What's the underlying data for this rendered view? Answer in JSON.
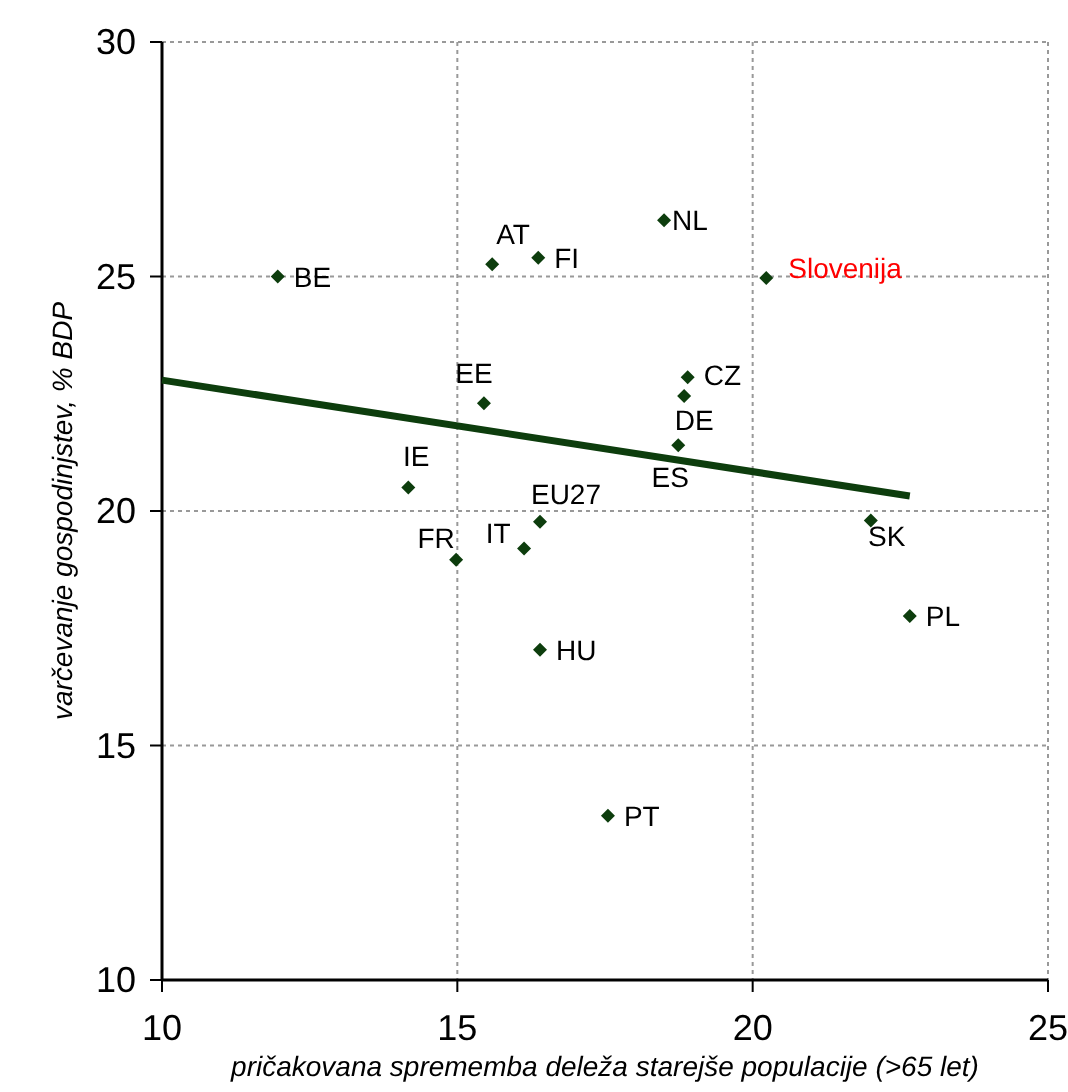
{
  "chart_data": {
    "type": "scatter",
    "xlabel": "pričakovana sprememba deleža starejše populacije (>65 let)",
    "ylabel": "varčevanje gospodinjstev, % BDP",
    "xlim": [
      10,
      25
    ],
    "xticks": [
      10,
      15,
      20,
      25
    ],
    "ylim": [
      10,
      30
    ],
    "yticks": [
      10,
      15,
      20,
      25,
      30
    ],
    "grid": true,
    "marker": "diamond",
    "series": [
      {
        "color": "#0d3d0d",
        "x": [
          11.96,
          15.59,
          16.37,
          18.5,
          15.45,
          18.9,
          18.84,
          18.74,
          14.17,
          16.4,
          16.13,
          14.98,
          22.0,
          22.66,
          16.4,
          17.55
        ],
        "values": [
          25.0,
          25.26,
          25.4,
          26.2,
          22.3,
          22.85,
          22.45,
          21.4,
          20.5,
          19.77,
          19.2,
          18.96,
          19.8,
          17.76,
          17.04,
          13.5
        ]
      },
      {
        "name": "Slovenija",
        "color": "#0d3d0d",
        "x": [
          20.23
        ],
        "values": [
          24.97
        ]
      },
      {
        "type": "line",
        "color": "#0d3d0d",
        "x": [
          10,
          22.66
        ],
        "values": [
          22.79,
          20.32
        ],
        "line_style": "solid",
        "marker": "none"
      }
    ],
    "annotations": [
      {
        "text": "BE",
        "x": 11.96,
        "y": 25.0
      },
      {
        "text": "AT",
        "x": 15.59,
        "y": 25.26
      },
      {
        "text": "FI",
        "x": 16.37,
        "y": 25.4
      },
      {
        "text": "NL",
        "x": 18.5,
        "y": 26.2
      },
      {
        "text": "EE",
        "x": 15.45,
        "y": 22.3
      },
      {
        "text": "CZ",
        "x": 18.9,
        "y": 22.85
      },
      {
        "text": "DE",
        "x": 18.84,
        "y": 22.45
      },
      {
        "text": "ES",
        "x": 18.74,
        "y": 21.4
      },
      {
        "text": "IE",
        "x": 14.17,
        "y": 20.5
      },
      {
        "text": "EU27",
        "x": 16.4,
        "y": 19.77
      },
      {
        "text": "IT",
        "x": 16.13,
        "y": 19.2
      },
      {
        "text": "FR",
        "x": 14.98,
        "y": 18.96
      },
      {
        "text": "SK",
        "x": 22.0,
        "y": 19.8
      },
      {
        "text": "PL",
        "x": 22.66,
        "y": 17.76
      },
      {
        "text": "HU",
        "x": 16.4,
        "y": 17.04
      },
      {
        "text": "PT",
        "x": 17.55,
        "y": 13.5
      }
    ]
  }
}
